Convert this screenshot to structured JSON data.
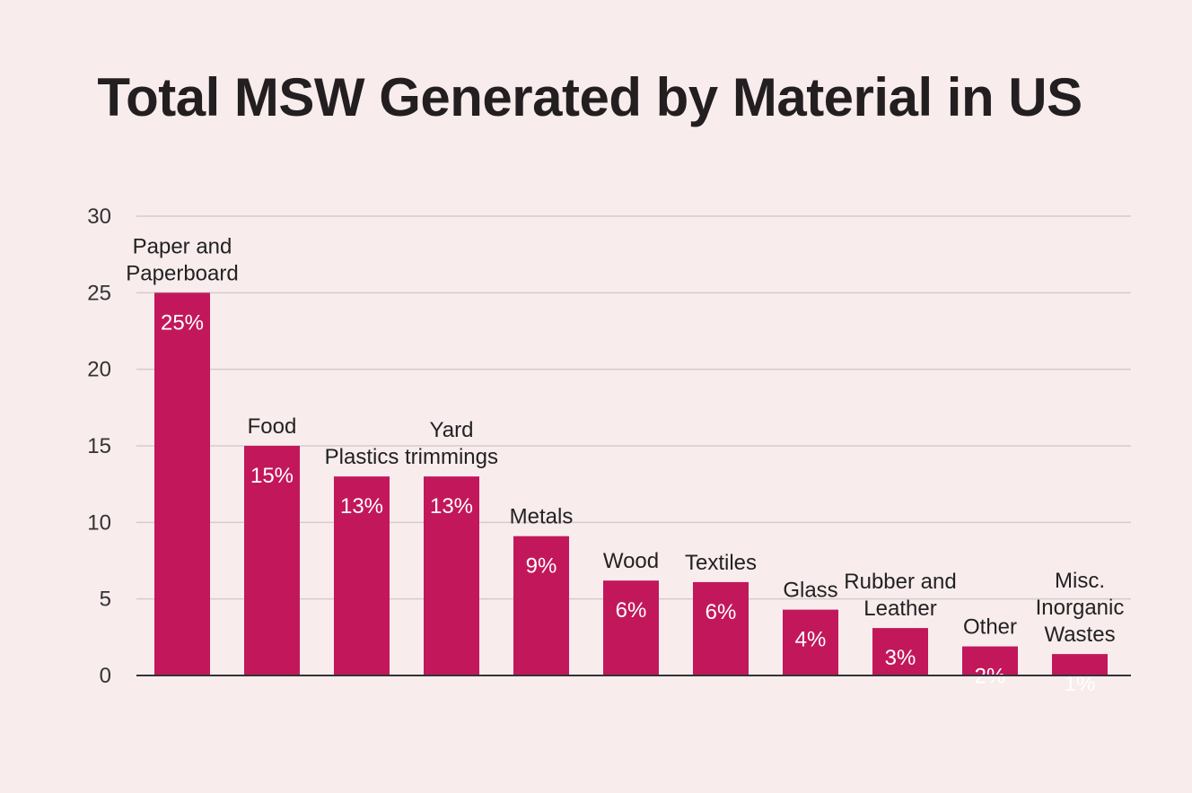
{
  "chart_data": {
    "type": "bar",
    "title": "Total MSW Generated by Material in US",
    "xlabel": "",
    "ylabel": "",
    "ylim": [
      0,
      30
    ],
    "yticks": [
      0,
      5,
      10,
      15,
      20,
      25,
      30
    ],
    "grid": true,
    "legend": "none",
    "bar_color": "#c2185b",
    "categories": [
      [
        "Paper and",
        "Paperboard"
      ],
      [
        "Food"
      ],
      [
        "Plastics"
      ],
      [
        "Yard",
        "trimmings"
      ],
      [
        "Metals"
      ],
      [
        "Wood"
      ],
      [
        "Textiles"
      ],
      [
        "Glass"
      ],
      [
        "Rubber and",
        "Leather"
      ],
      [
        "Other"
      ],
      [
        "Misc.",
        "Inorganic",
        "Wastes"
      ]
    ],
    "values": [
      25,
      15,
      13,
      13,
      9.1,
      6.2,
      6.1,
      4.3,
      3.1,
      1.9,
      1.4
    ],
    "data_labels": [
      "25%",
      "15%",
      "13%",
      "13%",
      "9%",
      "6%",
      "6%",
      "4%",
      "3%",
      "2%",
      "1%"
    ]
  }
}
